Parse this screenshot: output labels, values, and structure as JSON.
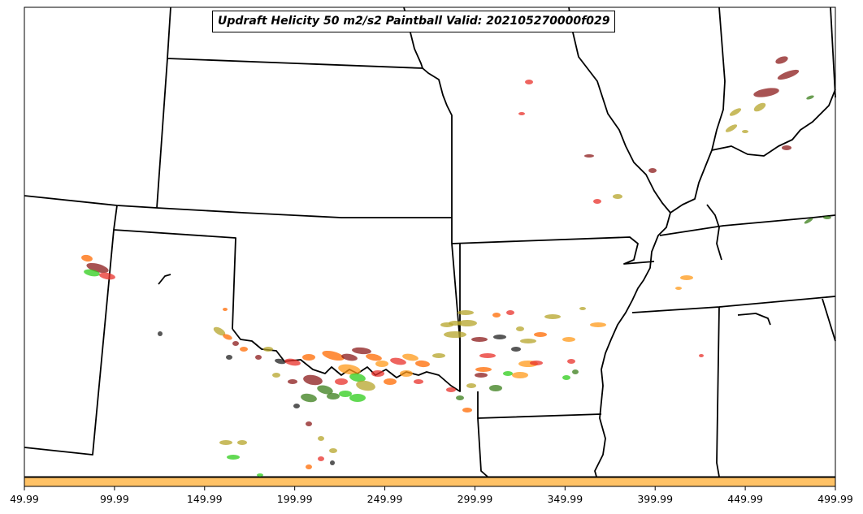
{
  "title": "Updraft Helicity 50 m2/s2 Paintball Valid: 202105270000f029",
  "colorbar": {
    "color": "#ffc266",
    "ticks": [
      "49.99",
      "99.99",
      "149.99",
      "199.99",
      "249.99",
      "299.99",
      "349.99",
      "399.99",
      "449.99",
      "499.99"
    ]
  },
  "paintball_colors": [
    "#e8302a",
    "#ff6a00",
    "#2ecc1a",
    "#8b1a1a",
    "#b5a42a",
    "#1f1f1f",
    "#ff9a1a",
    "#3a7d1a"
  ]
}
